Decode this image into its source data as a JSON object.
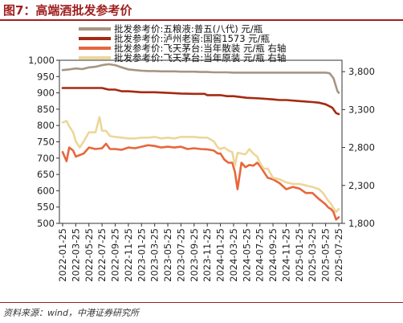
{
  "figure_title": "图7：高端酒批发参考价",
  "source": "资料来源：wind，中港证券研究所",
  "colors": {
    "title": "#a0201f",
    "wuliangye": "#a69582",
    "luzhou": "#a52a12",
    "moutai_loose": "#e8663c",
    "moutai_case": "#ecd79a"
  },
  "chart_data": {
    "type": "line",
    "title": "",
    "xlabel": "",
    "ylabel": "",
    "x_tick_labels": [
      "2022-01-25",
      "2022-03-25",
      "2022-05-25",
      "2022-07-25",
      "2022-09-25",
      "2022-11-25",
      "2023-01-25",
      "2023-03-25",
      "2023-05-25",
      "2023-07-25",
      "2023-09-25",
      "2023-11-25",
      "2024-01-25",
      "2024-03-25",
      "2024-05-25",
      "2024-07-25",
      "2024-09-25",
      "2024-11-25",
      "2025-01-25",
      "2025-03-25",
      "2025-05-25",
      "2025-07-25"
    ],
    "left_axis": {
      "ylim": [
        500,
        1000
      ],
      "ticks": [
        "500",
        "550",
        "600",
        "650",
        "700",
        "750",
        "800",
        "850",
        "900",
        "950",
        "1,000"
      ]
    },
    "right_axis": {
      "ylim": [
        1800,
        3950
      ],
      "ticks": [
        "1,800",
        "2,300",
        "2,800",
        "3,300",
        "3,800"
      ]
    },
    "grid": false,
    "legend_position": "top",
    "series": [
      {
        "name": "批发参考价:五粮液:普五(八代) 元/瓶",
        "axis": "left",
        "color": "#a69582",
        "x": [
          0,
          0.5,
          1,
          1.5,
          2,
          2.5,
          3,
          3.5,
          4,
          4.5,
          5,
          5.5,
          6,
          6.5,
          7,
          7.5,
          8,
          8.5,
          9,
          9.5,
          10,
          10.5,
          11,
          11.5,
          12,
          12.5,
          13,
          13.5,
          14,
          14.5,
          15,
          15.5,
          16,
          16.5,
          17,
          17.5,
          18,
          18.5,
          19,
          19.5,
          20,
          20.3,
          20.6,
          20.9,
          21
        ],
        "values": [
          970,
          972,
          975,
          973,
          978,
          980,
          985,
          988,
          985,
          978,
          972,
          970,
          968,
          967,
          967,
          966,
          966,
          966,
          965,
          965,
          965,
          964,
          964,
          963,
          963,
          963,
          962,
          962,
          962,
          962,
          962,
          962,
          962,
          962,
          962,
          962,
          962,
          962,
          962,
          962,
          962,
          960,
          945,
          905,
          900
        ]
      },
      {
        "name": "批发参考价:泸州老窖:国窖1573 元/瓶",
        "axis": "left",
        "color": "#a52a12",
        "x": [
          0,
          1,
          2,
          3,
          3.5,
          4,
          4.5,
          5,
          6,
          7,
          8,
          9,
          10,
          10.8,
          11,
          12,
          12.5,
          13,
          14,
          15,
          16,
          16.5,
          17,
          18,
          19,
          19.5,
          20,
          20.5,
          20.8,
          21
        ],
        "values": [
          915,
          915,
          915,
          915,
          910,
          910,
          905,
          905,
          902,
          902,
          900,
          898,
          897,
          897,
          893,
          893,
          890,
          890,
          885,
          883,
          880,
          878,
          878,
          875,
          872,
          870,
          865,
          855,
          838,
          835
        ]
      },
      {
        "name": "批发参考价:飞天茅台:当年散装 元/瓶 右轴",
        "axis": "right",
        "color": "#e8663c",
        "x": [
          0,
          0.3,
          0.5,
          0.8,
          1,
          1.3,
          1.6,
          2,
          2.5,
          3,
          3.3,
          3.6,
          4,
          4.5,
          5,
          5.5,
          6,
          6.5,
          7,
          7.5,
          8,
          8.5,
          9,
          9.5,
          10,
          10.5,
          11,
          11.5,
          11.8,
          12,
          12.3,
          12.6,
          12.9,
          13.1,
          13.3,
          13.6,
          13.9,
          14.2,
          14.5,
          14.8,
          15,
          15.3,
          15.6,
          16,
          16.5,
          17,
          17.5,
          18,
          18.5,
          19,
          19.5,
          19.8,
          20,
          20.2,
          20.4,
          20.6,
          20.8,
          21
        ],
        "values": [
          2740,
          2620,
          2800,
          2760,
          2680,
          2700,
          2720,
          2800,
          2780,
          2790,
          2850,
          2780,
          2780,
          2770,
          2800,
          2790,
          2810,
          2830,
          2820,
          2800,
          2810,
          2800,
          2810,
          2780,
          2790,
          2780,
          2775,
          2760,
          2720,
          2720,
          2640,
          2600,
          2600,
          2480,
          2250,
          2600,
          2540,
          2570,
          2560,
          2600,
          2560,
          2480,
          2400,
          2380,
          2330,
          2250,
          2280,
          2260,
          2200,
          2200,
          2120,
          2080,
          2050,
          2010,
          1990,
          1950,
          1850,
          1880
        ]
      },
      {
        "name": "批发参考价:飞天茅台:当年原装 元/瓶 右轴",
        "axis": "right",
        "color": "#ecd79a",
        "x": [
          0,
          0.3,
          0.5,
          0.8,
          1,
          1.3,
          1.6,
          2,
          2.5,
          2.8,
          3,
          3.3,
          3.6,
          4,
          4.5,
          5,
          5.5,
          6,
          6.5,
          7,
          7.5,
          8,
          8.5,
          9,
          9.5,
          10,
          10.5,
          11,
          11.5,
          11.8,
          12,
          12.3,
          12.6,
          12.9,
          13.1,
          13.3,
          13.6,
          13.9,
          14.2,
          14.5,
          14.8,
          15,
          15.3,
          15.6,
          16,
          16.5,
          17,
          17.5,
          18,
          18.5,
          19,
          19.5,
          19.8,
          20,
          20.2,
          20.4,
          20.6,
          20.8,
          21
        ],
        "values": [
          3130,
          3150,
          3080,
          3000,
          2880,
          2800,
          2880,
          3000,
          3000,
          3200,
          3020,
          3020,
          2950,
          2940,
          2930,
          2920,
          2920,
          2930,
          2930,
          2940,
          2920,
          2930,
          2920,
          2940,
          2940,
          2940,
          2930,
          2930,
          2880,
          2800,
          2780,
          2800,
          2760,
          2740,
          2560,
          2730,
          2720,
          2710,
          2780,
          2720,
          2680,
          2600,
          2520,
          2520,
          2400,
          2380,
          2340,
          2320,
          2320,
          2300,
          2280,
          2250,
          2200,
          2150,
          2100,
          2060,
          2000,
          1950,
          1990
        ]
      }
    ]
  }
}
